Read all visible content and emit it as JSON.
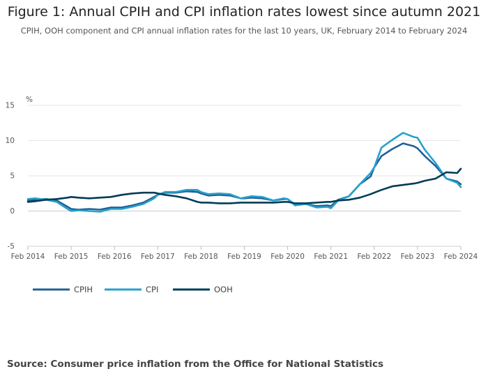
{
  "chart_data": {
    "type": "line",
    "title": "Figure 1: Annual CPIH and CPI inflation rates lowest since autumn 2021",
    "subtitle": "CPIH, OOH component and CPI annual inflation rates for the last 10 years, UK, February 2014 to February 2024",
    "ylabel": "%",
    "ylim": [
      -5,
      15
    ],
    "yticks": [
      15,
      10,
      5,
      0,
      -5
    ],
    "ytick_labels": [
      "15",
      "10",
      "5",
      "0",
      "-5"
    ],
    "xlim": [
      2014.083,
      2024.083
    ],
    "xticks": [
      2014.083,
      2015.083,
      2016.083,
      2017.083,
      2018.083,
      2019.083,
      2020.083,
      2021.083,
      2022.083,
      2023.083,
      2024.083
    ],
    "xtick_labels": [
      "Feb 2014",
      "Feb 2015",
      "Feb 2016",
      "Feb 2017",
      "Feb 2018",
      "Feb 2019",
      "Feb 2020",
      "Feb 2021",
      "Feb 2022",
      "Feb 2023",
      "Feb 2024"
    ],
    "grid": true,
    "legend_position": "bottom-left",
    "series": [
      {
        "name": "CPIH",
        "color": "#206095",
        "points": [
          [
            2014.083,
            1.5
          ],
          [
            2014.25,
            1.6
          ],
          [
            2014.5,
            1.7
          ],
          [
            2014.75,
            1.5
          ],
          [
            2015.0,
            0.6
          ],
          [
            2015.083,
            0.3
          ],
          [
            2015.25,
            0.2
          ],
          [
            2015.5,
            0.3
          ],
          [
            2015.75,
            0.2
          ],
          [
            2016.0,
            0.5
          ],
          [
            2016.083,
            0.5
          ],
          [
            2016.25,
            0.5
          ],
          [
            2016.5,
            0.8
          ],
          [
            2016.75,
            1.2
          ],
          [
            2017.0,
            2.0
          ],
          [
            2017.083,
            2.3
          ],
          [
            2017.25,
            2.6
          ],
          [
            2017.5,
            2.6
          ],
          [
            2017.75,
            2.8
          ],
          [
            2018.0,
            2.7
          ],
          [
            2018.083,
            2.5
          ],
          [
            2018.25,
            2.2
          ],
          [
            2018.5,
            2.3
          ],
          [
            2018.75,
            2.2
          ],
          [
            2019.0,
            1.8
          ],
          [
            2019.083,
            1.8
          ],
          [
            2019.25,
            1.9
          ],
          [
            2019.5,
            1.8
          ],
          [
            2019.75,
            1.5
          ],
          [
            2020.0,
            1.7
          ],
          [
            2020.083,
            1.7
          ],
          [
            2020.25,
            0.9
          ],
          [
            2020.5,
            1.0
          ],
          [
            2020.75,
            0.7
          ],
          [
            2021.0,
            0.8
          ],
          [
            2021.083,
            0.7
          ],
          [
            2021.25,
            1.6
          ],
          [
            2021.5,
            2.1
          ],
          [
            2021.75,
            3.8
          ],
          [
            2022.0,
            4.9
          ],
          [
            2022.083,
            6.2
          ],
          [
            2022.25,
            7.8
          ],
          [
            2022.5,
            8.8
          ],
          [
            2022.75,
            9.6
          ],
          [
            2023.0,
            9.2
          ],
          [
            2023.083,
            8.9
          ],
          [
            2023.25,
            7.8
          ],
          [
            2023.5,
            6.4
          ],
          [
            2023.75,
            4.6
          ],
          [
            2024.0,
            4.2
          ],
          [
            2024.083,
            3.8
          ]
        ]
      },
      {
        "name": "CPI",
        "color": "#27A0CC",
        "points": [
          [
            2014.083,
            1.7
          ],
          [
            2014.25,
            1.8
          ],
          [
            2014.5,
            1.6
          ],
          [
            2014.75,
            1.3
          ],
          [
            2015.0,
            0.3
          ],
          [
            2015.083,
            0.0
          ],
          [
            2015.25,
            0.1
          ],
          [
            2015.5,
            0.0
          ],
          [
            2015.75,
            -0.1
          ],
          [
            2016.0,
            0.3
          ],
          [
            2016.083,
            0.3
          ],
          [
            2016.25,
            0.3
          ],
          [
            2016.5,
            0.6
          ],
          [
            2016.75,
            1.0
          ],
          [
            2017.0,
            1.8
          ],
          [
            2017.083,
            2.3
          ],
          [
            2017.25,
            2.7
          ],
          [
            2017.5,
            2.7
          ],
          [
            2017.75,
            3.0
          ],
          [
            2018.0,
            3.0
          ],
          [
            2018.083,
            2.7
          ],
          [
            2018.25,
            2.4
          ],
          [
            2018.5,
            2.5
          ],
          [
            2018.75,
            2.4
          ],
          [
            2019.0,
            1.8
          ],
          [
            2019.083,
            1.9
          ],
          [
            2019.25,
            2.1
          ],
          [
            2019.5,
            2.0
          ],
          [
            2019.75,
            1.5
          ],
          [
            2020.0,
            1.8
          ],
          [
            2020.083,
            1.7
          ],
          [
            2020.25,
            0.8
          ],
          [
            2020.5,
            1.0
          ],
          [
            2020.75,
            0.5
          ],
          [
            2021.0,
            0.6
          ],
          [
            2021.083,
            0.4
          ],
          [
            2021.25,
            1.5
          ],
          [
            2021.5,
            2.1
          ],
          [
            2021.75,
            3.8
          ],
          [
            2022.0,
            5.4
          ],
          [
            2022.083,
            6.2
          ],
          [
            2022.25,
            9.0
          ],
          [
            2022.5,
            10.1
          ],
          [
            2022.75,
            11.1
          ],
          [
            2023.0,
            10.5
          ],
          [
            2023.083,
            10.4
          ],
          [
            2023.25,
            8.7
          ],
          [
            2023.5,
            6.8
          ],
          [
            2023.75,
            4.6
          ],
          [
            2024.0,
            4.0
          ],
          [
            2024.083,
            3.4
          ]
        ]
      },
      {
        "name": "OOH",
        "color": "#003C57",
        "points": [
          [
            2014.083,
            1.3
          ],
          [
            2014.25,
            1.4
          ],
          [
            2014.5,
            1.6
          ],
          [
            2014.75,
            1.7
          ],
          [
            2015.0,
            1.9
          ],
          [
            2015.083,
            2.0
          ],
          [
            2015.25,
            1.9
          ],
          [
            2015.5,
            1.8
          ],
          [
            2015.75,
            1.9
          ],
          [
            2016.0,
            2.0
          ],
          [
            2016.083,
            2.1
          ],
          [
            2016.25,
            2.3
          ],
          [
            2016.5,
            2.5
          ],
          [
            2016.75,
            2.6
          ],
          [
            2017.0,
            2.6
          ],
          [
            2017.083,
            2.5
          ],
          [
            2017.25,
            2.3
          ],
          [
            2017.5,
            2.1
          ],
          [
            2017.75,
            1.8
          ],
          [
            2018.0,
            1.3
          ],
          [
            2018.083,
            1.2
          ],
          [
            2018.25,
            1.2
          ],
          [
            2018.5,
            1.1
          ],
          [
            2018.75,
            1.1
          ],
          [
            2019.0,
            1.2
          ],
          [
            2019.083,
            1.2
          ],
          [
            2019.25,
            1.2
          ],
          [
            2019.5,
            1.2
          ],
          [
            2019.75,
            1.2
          ],
          [
            2020.0,
            1.3
          ],
          [
            2020.083,
            1.3
          ],
          [
            2020.25,
            1.1
          ],
          [
            2020.5,
            1.1
          ],
          [
            2020.75,
            1.2
          ],
          [
            2021.0,
            1.3
          ],
          [
            2021.083,
            1.3
          ],
          [
            2021.25,
            1.5
          ],
          [
            2021.5,
            1.6
          ],
          [
            2021.75,
            1.9
          ],
          [
            2022.0,
            2.4
          ],
          [
            2022.083,
            2.6
          ],
          [
            2022.25,
            3.0
          ],
          [
            2022.5,
            3.5
          ],
          [
            2022.75,
            3.7
          ],
          [
            2023.0,
            3.9
          ],
          [
            2023.083,
            4.0
          ],
          [
            2023.25,
            4.3
          ],
          [
            2023.5,
            4.6
          ],
          [
            2023.75,
            5.5
          ],
          [
            2024.0,
            5.4
          ],
          [
            2024.083,
            6.0
          ]
        ]
      }
    ]
  },
  "footer": {
    "source": "Source: Consumer price inflation from the Office for National Statistics"
  }
}
